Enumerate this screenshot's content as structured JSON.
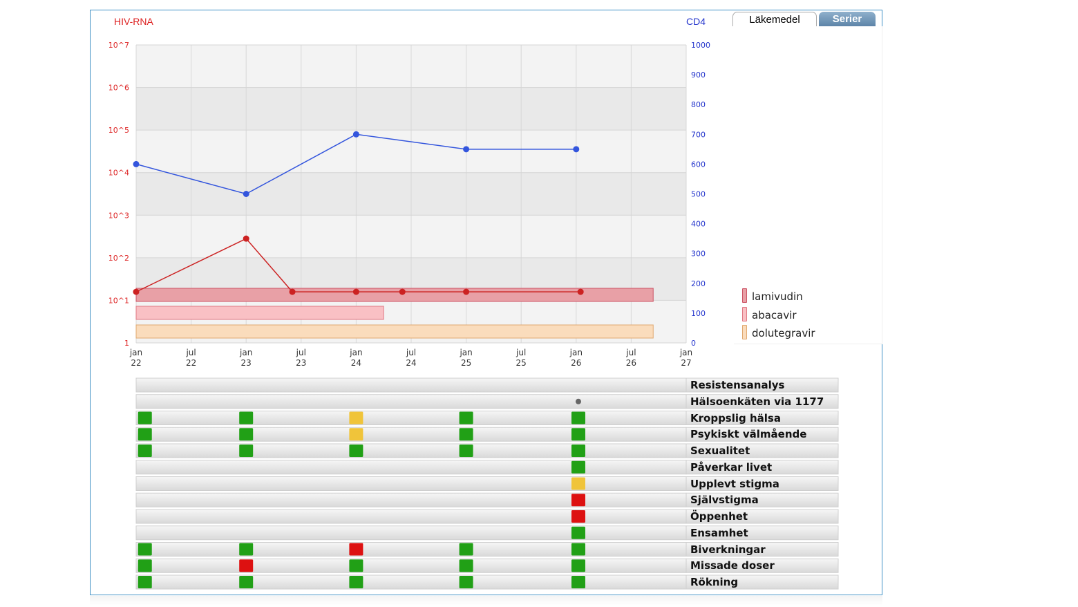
{
  "tabs": {
    "active": "Läkemedel",
    "other": "Serier"
  },
  "chart_data": {
    "type": "line",
    "left_axis": {
      "label": "HIV-RNA",
      "color": "#dd2222",
      "scale": "log",
      "ticks": [
        "1",
        "10^1",
        "10^2",
        "10^3",
        "10^4",
        "10^5",
        "10^6",
        "10^7"
      ]
    },
    "right_axis": {
      "label": "CD4",
      "color": "#2233cc",
      "ylim": [
        0,
        1000
      ],
      "ticks": [
        "0",
        "100",
        "200",
        "300",
        "400",
        "500",
        "600",
        "700",
        "800",
        "900",
        "1000"
      ]
    },
    "x_ticks": [
      {
        "top": "jan",
        "bottom": "22",
        "t": 2022.0
      },
      {
        "top": "jul",
        "bottom": "22",
        "t": 2022.5
      },
      {
        "top": "jan",
        "bottom": "23",
        "t": 2023.0
      },
      {
        "top": "jul",
        "bottom": "23",
        "t": 2023.5
      },
      {
        "top": "jan",
        "bottom": "24",
        "t": 2024.0
      },
      {
        "top": "jul",
        "bottom": "24",
        "t": 2024.5
      },
      {
        "top": "jan",
        "bottom": "25",
        "t": 2025.0
      },
      {
        "top": "jul",
        "bottom": "25",
        "t": 2025.5
      },
      {
        "top": "jan",
        "bottom": "26",
        "t": 2026.0
      },
      {
        "top": "jul",
        "bottom": "26",
        "t": 2026.5
      },
      {
        "top": "jan",
        "bottom": "27",
        "t": 2027.0
      }
    ],
    "xlim": [
      2022.0,
      2027.0
    ],
    "grid": true,
    "series": [
      {
        "name": "CD4",
        "axis": "right",
        "color": "#3355dd",
        "points": [
          [
            2022.0,
            600
          ],
          [
            2023.0,
            500
          ],
          [
            2024.0,
            700
          ],
          [
            2025.0,
            650
          ],
          [
            2026.0,
            650
          ]
        ]
      },
      {
        "name": "HIV-RNA",
        "axis": "left",
        "color": "#cc2222",
        "points": [
          [
            2022.0,
            1.2
          ],
          [
            2023.0,
            2.45
          ],
          [
            2023.42,
            1.2
          ],
          [
            2024.0,
            1.2
          ],
          [
            2024.42,
            1.2
          ],
          [
            2025.0,
            1.2
          ],
          [
            2026.04,
            1.2
          ]
        ]
      }
    ],
    "treatments": [
      {
        "name": "lamivudin",
        "start": 2022.0,
        "end": 2026.7,
        "fill": "#e8a0a6",
        "stroke": "#cc5566"
      },
      {
        "name": "abacavir",
        "start": 2022.0,
        "end": 2024.25,
        "fill": "#f9c0c4",
        "stroke": "#e07a85"
      },
      {
        "name": "dolutegravir",
        "start": 2022.0,
        "end": 2026.7,
        "fill": "#fadcbc",
        "stroke": "#e0a870"
      }
    ]
  },
  "timeline_rows": [
    {
      "label": "Resistensanalys",
      "marks": []
    },
    {
      "label": "Hälsoenkäten via 1177",
      "marks": [
        {
          "t": 2026.02,
          "status": "dot"
        }
      ]
    },
    {
      "label": "Kroppslig hälsa",
      "marks": [
        {
          "t": 2022.08,
          "status": "green"
        },
        {
          "t": 2023.0,
          "status": "green"
        },
        {
          "t": 2024.0,
          "status": "yellow"
        },
        {
          "t": 2025.0,
          "status": "green"
        },
        {
          "t": 2026.02,
          "status": "green"
        }
      ]
    },
    {
      "label": "Psykiskt välmående",
      "marks": [
        {
          "t": 2022.08,
          "status": "green"
        },
        {
          "t": 2023.0,
          "status": "green"
        },
        {
          "t": 2024.0,
          "status": "yellow"
        },
        {
          "t": 2025.0,
          "status": "green"
        },
        {
          "t": 2026.02,
          "status": "green"
        }
      ]
    },
    {
      "label": "Sexualitet",
      "marks": [
        {
          "t": 2022.08,
          "status": "green"
        },
        {
          "t": 2023.0,
          "status": "green"
        },
        {
          "t": 2024.0,
          "status": "green"
        },
        {
          "t": 2025.0,
          "status": "green"
        },
        {
          "t": 2026.02,
          "status": "green"
        }
      ]
    },
    {
      "label": "Påverkar livet",
      "marks": [
        {
          "t": 2026.02,
          "status": "green"
        }
      ]
    },
    {
      "label": "Upplevt stigma",
      "marks": [
        {
          "t": 2026.02,
          "status": "yellow"
        }
      ]
    },
    {
      "label": "Självstigma",
      "marks": [
        {
          "t": 2026.02,
          "status": "red"
        }
      ]
    },
    {
      "label": "Öppenhet",
      "marks": [
        {
          "t": 2026.02,
          "status": "red"
        }
      ]
    },
    {
      "label": "Ensamhet",
      "marks": [
        {
          "t": 2026.02,
          "status": "green"
        }
      ]
    },
    {
      "label": "Biverkningar",
      "marks": [
        {
          "t": 2022.08,
          "status": "green"
        },
        {
          "t": 2023.0,
          "status": "green"
        },
        {
          "t": 2024.0,
          "status": "red"
        },
        {
          "t": 2025.0,
          "status": "green"
        },
        {
          "t": 2026.02,
          "status": "green"
        }
      ]
    },
    {
      "label": "Missade doser",
      "marks": [
        {
          "t": 2022.08,
          "status": "green"
        },
        {
          "t": 2023.0,
          "status": "red"
        },
        {
          "t": 2024.0,
          "status": "green"
        },
        {
          "t": 2025.0,
          "status": "green"
        },
        {
          "t": 2026.02,
          "status": "green"
        }
      ]
    },
    {
      "label": "Rökning",
      "marks": [
        {
          "t": 2022.08,
          "status": "green"
        },
        {
          "t": 2023.0,
          "status": "green"
        },
        {
          "t": 2024.0,
          "status": "green"
        },
        {
          "t": 2025.0,
          "status": "green"
        },
        {
          "t": 2026.02,
          "status": "green"
        }
      ]
    }
  ],
  "status_colors": {
    "green": "#21a016",
    "yellow": "#f0c43a",
    "red": "#dd1111",
    "dot": "#666666"
  }
}
